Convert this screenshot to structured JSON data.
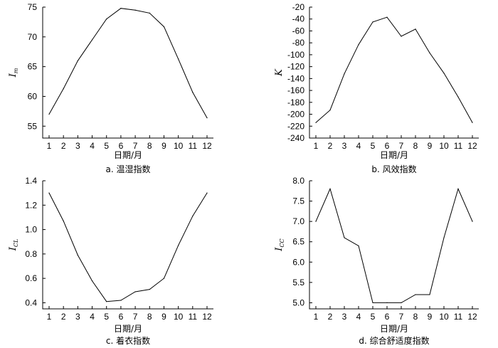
{
  "chart_data": [
    {
      "type": "line",
      "caption": "a. 温湿指数",
      "xlabel": "日期/月",
      "ylabel_main": "I",
      "ylabel_sub": "m",
      "x": [
        1,
        2,
        3,
        4,
        5,
        6,
        7,
        8,
        9,
        10,
        11,
        12
      ],
      "values": [
        57,
        61.3,
        66,
        69.5,
        73,
        74.8,
        74.5,
        74,
        71.7,
        66.3,
        60.7,
        56.4
      ],
      "ylim": [
        53,
        75
      ],
      "yticks": [
        55,
        60,
        65,
        70,
        75
      ]
    },
    {
      "type": "line",
      "caption": "b. 风效指数",
      "xlabel": "日期/月",
      "ylabel_main": "K",
      "ylabel_sub": "",
      "x": [
        1,
        2,
        3,
        4,
        5,
        6,
        7,
        8,
        9,
        10,
        11,
        12
      ],
      "values": [
        -214,
        -193,
        -132,
        -83,
        -45,
        -37,
        -69,
        -57,
        -97,
        -131,
        -171,
        -214
      ],
      "ylim": [
        -240,
        -20
      ],
      "yticks": [
        -240,
        -220,
        -200,
        -180,
        -160,
        -140,
        -120,
        -100,
        -80,
        -60,
        -40,
        -20
      ]
    },
    {
      "type": "line",
      "caption": "c. 着衣指数",
      "xlabel": "日期/月",
      "ylabel_main": "I",
      "ylabel_sub": "CL",
      "x": [
        1,
        2,
        3,
        4,
        5,
        6,
        7,
        8,
        9,
        10,
        11,
        12
      ],
      "values": [
        1.3,
        1.07,
        0.79,
        0.58,
        0.41,
        0.42,
        0.49,
        0.51,
        0.6,
        0.87,
        1.11,
        1.3
      ],
      "ylim": [
        0.35,
        1.4
      ],
      "yticks": [
        "0.4",
        "0.6",
        "0.8",
        "1.0",
        "1.2",
        "1.4"
      ]
    },
    {
      "type": "line",
      "caption": "d. 综合舒适度指数",
      "xlabel": "日期/月",
      "ylabel_main": "I",
      "ylabel_sub": "CC",
      "x": [
        1,
        2,
        3,
        4,
        5,
        6,
        7,
        8,
        9,
        10,
        11,
        12
      ],
      "values": [
        7.0,
        7.8,
        6.6,
        6.4,
        5.0,
        5.0,
        5.0,
        5.2,
        5.2,
        6.6,
        7.8,
        7.0
      ],
      "ylim": [
        4.85,
        8.0
      ],
      "yticks": [
        "5.0",
        "5.5",
        "6.0",
        "6.5",
        "7.0",
        "7.5",
        "8.0"
      ]
    }
  ]
}
